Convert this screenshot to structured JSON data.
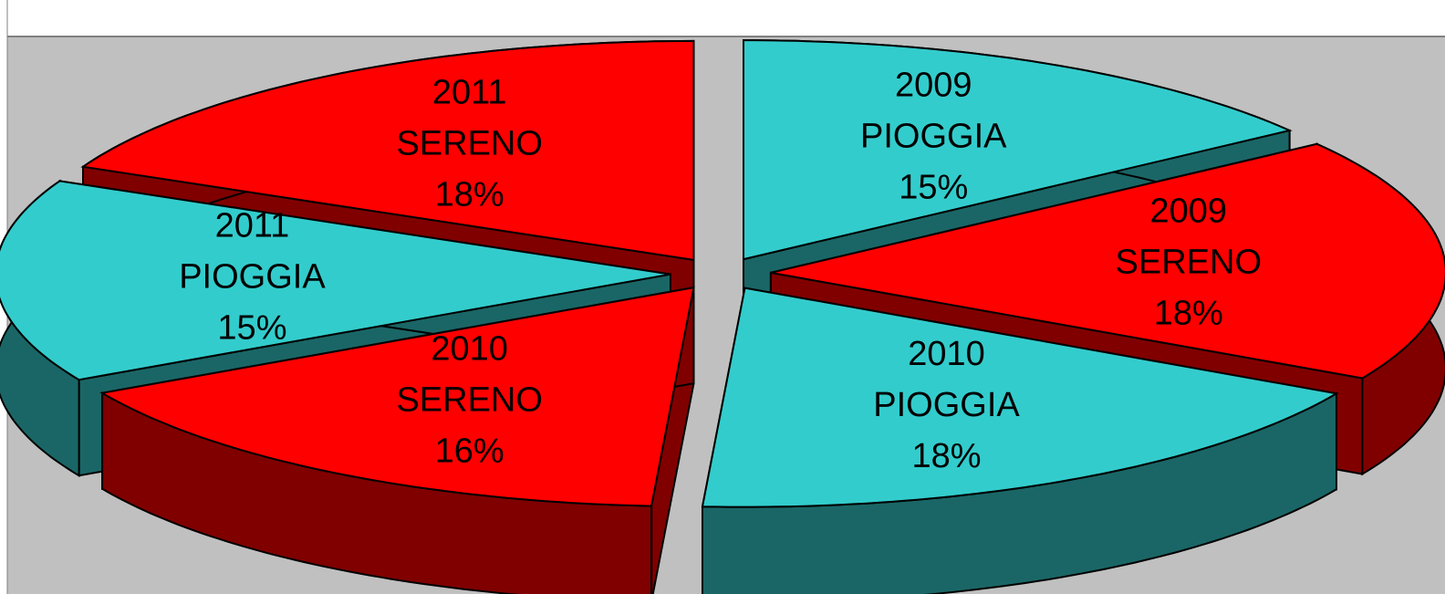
{
  "chart_data": {
    "type": "pie3d",
    "years": [
      "2009",
      "2009",
      "2010",
      "2010",
      "2011",
      "2011"
    ],
    "conditions": [
      "PIOGGIA",
      "SERENO",
      "PIOGGIA",
      "SERENO",
      "PIOGGIA",
      "SERENO"
    ],
    "values": [
      15,
      18,
      18,
      16,
      15,
      18
    ],
    "value_labels": [
      "15%",
      "18%",
      "18%",
      "16%",
      "15%",
      "18%"
    ],
    "colors": [
      "#33cccc",
      "#ff0000",
      "#33cccc",
      "#ff0000",
      "#33cccc",
      "#ff0000"
    ]
  }
}
